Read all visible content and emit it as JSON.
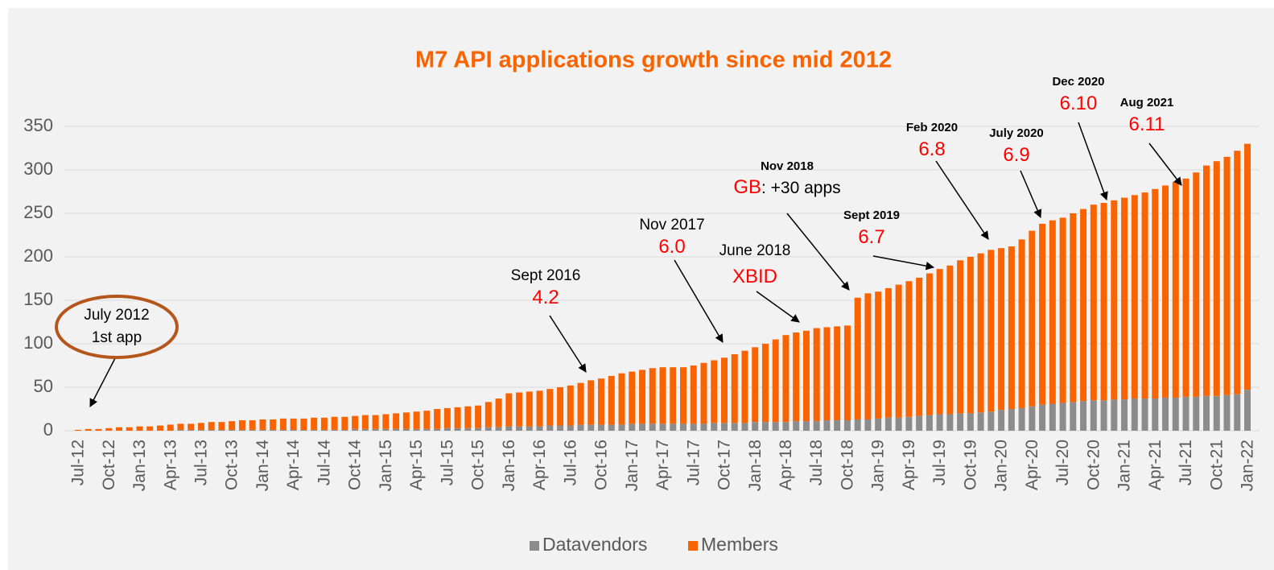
{
  "chart_data": {
    "type": "stacked_bar",
    "title": "M7 API applications growth since mid 2012",
    "categories": [
      "Jul-12",
      null,
      null,
      "Oct-12",
      null,
      null,
      "Jan-13",
      null,
      null,
      "Apr-13",
      null,
      null,
      "Jul-13",
      null,
      null,
      "Oct-13",
      null,
      null,
      "Jan-14",
      null,
      null,
      "Apr-14",
      null,
      null,
      "Jul-14",
      null,
      null,
      "Oct-14",
      null,
      null,
      "Jan-15",
      null,
      null,
      "Apr-15",
      null,
      null,
      "Jul-15",
      null,
      null,
      "Oct-15",
      null,
      null,
      "Jan-16",
      null,
      null,
      "Apr-16",
      null,
      null,
      "Jul-16",
      null,
      null,
      "Oct-16",
      null,
      null,
      "Jan-17",
      null,
      null,
      "Apr-17",
      null,
      null,
      "Jul-17",
      null,
      null,
      "Oct-17",
      null,
      null,
      "Jan-18",
      null,
      null,
      "Apr-18",
      null,
      null,
      "Jul-18",
      null,
      null,
      "Oct-18",
      null,
      null,
      "Jan-19",
      null,
      null,
      "Apr-19",
      null,
      null,
      "Jul-19",
      null,
      null,
      "Oct-19",
      null,
      null,
      "Jan-20",
      null,
      null,
      "Apr-20",
      null,
      null,
      "Jul-20",
      null,
      null,
      "Oct-20",
      null,
      null,
      "Jan-21",
      null,
      null,
      "Apr-21",
      null,
      null,
      "Jul-21",
      null,
      null,
      "Oct-21",
      null,
      null,
      "Jan-22"
    ],
    "series": [
      {
        "name": "Datavendors",
        "color": "#8c8c8c",
        "values": [
          0,
          0,
          0,
          0,
          0,
          0,
          0,
          0,
          0,
          0,
          1,
          1,
          1,
          1,
          1,
          1,
          1,
          1,
          1,
          1,
          1,
          1,
          1,
          1,
          1,
          1,
          1,
          2,
          2,
          2,
          2,
          2,
          2,
          2,
          2,
          2,
          3,
          3,
          3,
          3,
          4,
          4,
          5,
          5,
          5,
          5,
          6,
          6,
          6,
          7,
          7,
          7,
          7,
          7,
          8,
          8,
          8,
          8,
          8,
          8,
          8,
          8,
          9,
          9,
          9,
          9,
          10,
          10,
          10,
          10,
          11,
          11,
          11,
          12,
          12,
          12,
          13,
          13,
          14,
          15,
          15,
          16,
          17,
          18,
          19,
          19,
          20,
          20,
          21,
          22,
          24,
          25,
          26,
          28,
          30,
          31,
          32,
          33,
          34,
          35,
          35,
          36,
          36,
          37,
          37,
          37,
          38,
          38,
          39,
          39,
          40,
          40,
          41,
          42,
          47
        ]
      },
      {
        "name": "Members",
        "color": "#fa6400",
        "values": [
          1,
          2,
          2,
          3,
          4,
          4,
          5,
          5,
          6,
          7,
          7,
          7,
          8,
          9,
          9,
          10,
          11,
          11,
          12,
          12,
          13,
          13,
          13,
          14,
          14,
          15,
          15,
          15,
          16,
          16,
          17,
          18,
          19,
          20,
          21,
          23,
          23,
          24,
          25,
          26,
          29,
          33,
          38,
          39,
          40,
          41,
          42,
          44,
          46,
          48,
          51,
          53,
          56,
          59,
          60,
          62,
          64,
          65,
          65,
          65,
          67,
          70,
          72,
          75,
          79,
          83,
          86,
          90,
          95,
          100,
          102,
          104,
          107,
          107,
          108,
          109,
          140,
          145,
          146,
          149,
          153,
          156,
          159,
          163,
          167,
          171,
          176,
          180,
          183,
          186,
          186,
          187,
          194,
          202,
          208,
          211,
          213,
          217,
          221,
          225,
          227,
          229,
          232,
          234,
          237,
          241,
          244,
          248,
          251,
          258,
          265,
          270,
          274,
          280,
          283
        ]
      }
    ],
    "ylim": [
      0,
      350
    ],
    "yticks": [
      0,
      50,
      100,
      150,
      200,
      250,
      300,
      350
    ],
    "grid": true,
    "annotations": [
      {
        "date": "July 2012",
        "text": "1st app"
      },
      {
        "date": "Sept 2016",
        "version": "4.2"
      },
      {
        "date": "Nov 2017",
        "version": "6.0"
      },
      {
        "date": "June 2018",
        "version": "XBID"
      },
      {
        "date": "Nov 2018",
        "version": "GB",
        "text": ": +30 apps"
      },
      {
        "date": "Sept 2019",
        "version": "6.7"
      },
      {
        "date": "Feb 2020",
        "version": "6.8"
      },
      {
        "date": "July 2020",
        "version": "6.9"
      },
      {
        "date": "Dec 2020",
        "version": "6.10"
      },
      {
        "date": "Aug 2021",
        "version": "6.11"
      }
    ]
  }
}
